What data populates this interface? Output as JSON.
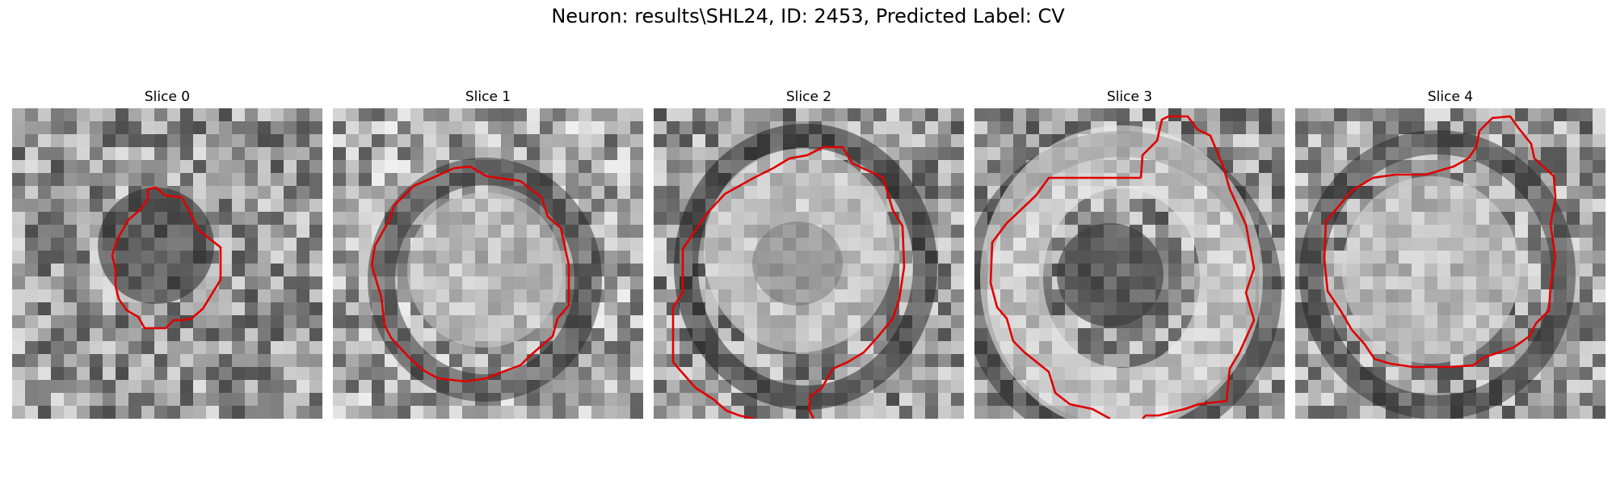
{
  "figure": {
    "title": "Neuron: results\\SHL24, ID: 2453, Predicted Label: CV",
    "slices": [
      {
        "label": "Slice 0"
      },
      {
        "label": "Slice 1"
      },
      {
        "label": "Slice 2"
      },
      {
        "label": "Slice 3"
      },
      {
        "label": "Slice 4"
      }
    ],
    "contour_color": "#e00000",
    "colormap": "gray"
  }
}
